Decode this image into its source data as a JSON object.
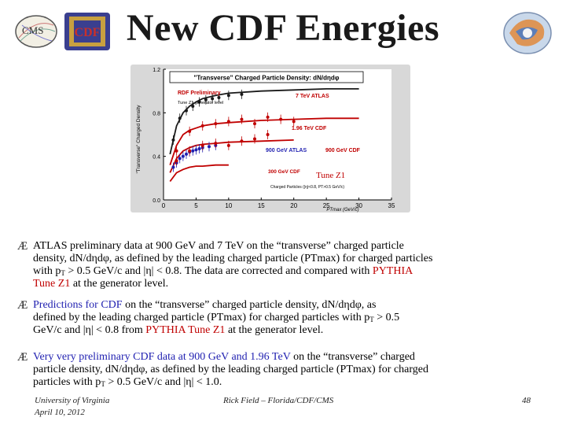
{
  "title": "New CDF Energies",
  "logos": {
    "left": "CMS",
    "center": "CDF"
  },
  "chart_data": {
    "type": "line",
    "title": "\"Transverse\" Charged Particle Density: dN/dηdφ",
    "xlabel": "PTmax  (GeV/c)",
    "ylabel": "\"Transverse\" Charged Density",
    "xlim": [
      0,
      35
    ],
    "ylim": [
      0,
      1.2
    ],
    "xticks": [
      "0",
      "5",
      "10",
      "15",
      "20",
      "25",
      "30",
      "35"
    ],
    "yticks": [
      "0.0",
      "0.4",
      "0.8",
      "1.2"
    ],
    "annotations": {
      "preliminary": "RDF Preliminary",
      "tune": "Tune Z1 generator level",
      "atlas7": "7 TeV ATLAS",
      "cdf196": "1.96 TeV CDF",
      "atlas900": "900 GeV ATLAS",
      "cdf900": "900 GeV CDF",
      "cdf300": "300 GeV CDF",
      "tunez1": "Tune Z1",
      "cuts": "Charged Particles (|η|<0.8, PT>0.5 GeV/c)"
    },
    "series": [
      {
        "name": "7 TeV ATLAS",
        "color": "#1a1a1a",
        "x": [
          1,
          2,
          3,
          4,
          5,
          6,
          8,
          10,
          15,
          20,
          25,
          30
        ],
        "y": [
          0.42,
          0.68,
          0.8,
          0.86,
          0.9,
          0.93,
          0.96,
          0.98,
          1.0,
          1.01,
          1.02,
          1.02
        ]
      },
      {
        "name": "1.96 TeV CDF",
        "color": "#c00000",
        "x": [
          1,
          2,
          3,
          4,
          5,
          6,
          8,
          10,
          15,
          20,
          25,
          30
        ],
        "y": [
          0.32,
          0.5,
          0.6,
          0.64,
          0.66,
          0.68,
          0.7,
          0.71,
          0.73,
          0.74,
          0.75,
          0.75
        ]
      },
      {
        "name": "900 GeV CDF",
        "color": "#c00000",
        "x": [
          1,
          2,
          3,
          4,
          5,
          6,
          8,
          10,
          15,
          20
        ],
        "y": [
          0.25,
          0.38,
          0.45,
          0.48,
          0.5,
          0.51,
          0.52,
          0.53,
          0.54,
          0.55
        ]
      },
      {
        "name": "300 GeV CDF",
        "color": "#c00000",
        "x": [
          1,
          2,
          3,
          4,
          5,
          6,
          8,
          10
        ],
        "y": [
          0.17,
          0.25,
          0.28,
          0.3,
          0.31,
          0.31,
          0.32,
          0.32
        ]
      },
      {
        "name": "7 TeV ATLAS data",
        "color": "#1a1a1a",
        "points": true,
        "x": [
          1.5,
          2.5,
          3.5,
          4.5,
          5.5,
          6.5,
          7.5,
          8.5,
          10,
          12
        ],
        "y": [
          0.55,
          0.75,
          0.82,
          0.86,
          0.9,
          0.92,
          0.93,
          0.94,
          0.96,
          0.97
        ]
      },
      {
        "name": "1.96 TeV CDF data",
        "color": "#c00000",
        "points": true,
        "x": [
          2,
          4,
          6,
          8,
          10,
          12,
          14,
          16,
          18,
          20
        ],
        "y": [
          0.45,
          0.63,
          0.68,
          0.7,
          0.72,
          0.74,
          0.7,
          0.76,
          0.74,
          0.72
        ]
      },
      {
        "name": "900 GeV ATLAS data",
        "color": "#1f1fb0",
        "points": true,
        "x": [
          1.5,
          2,
          2.5,
          3,
          3.5,
          4,
          4.5,
          5,
          5.5,
          6,
          7,
          8
        ],
        "y": [
          0.3,
          0.34,
          0.38,
          0.4,
          0.42,
          0.44,
          0.45,
          0.46,
          0.47,
          0.48,
          0.49,
          0.5
        ]
      },
      {
        "name": "900 GeV CDF data",
        "color": "#c00000",
        "points": true,
        "x": [
          2,
          4,
          6,
          8,
          10,
          12,
          14,
          16
        ],
        "y": [
          0.36,
          0.45,
          0.5,
          0.52,
          0.5,
          0.54,
          0.56,
          0.6
        ]
      }
    ]
  },
  "bullets": [
    {
      "line1": "ATLAS preliminary data at  900 GeV and 7 TeV on the “transverse” charged particle",
      "line2": "density, dN/dηdφ, as defined by the leading charged particle (PTmax) for charged particles",
      "line3a": "with p",
      "line3b": " > 0.5 GeV/c and |η| < 0.8.  The data are corrected and compared with ",
      "line3c": "PYTHIA",
      "line4a": "Tune Z1",
      "line4b": " at the generator level."
    },
    {
      "line1a": "Predictions for CDF",
      "line1b": "  on the “transverse” charged particle density, dN/dηdφ, as",
      "line2a": "defined by the leading charged particle (PTmax) for charged particles with p",
      "line2b": " > 0.5",
      "line3a": "GeV/c and |η| < 0.8 from ",
      "line3b": "PYTHIA Tune Z1",
      "line3c": " at the generator level."
    },
    {
      "line1a": "Very very preliminary CDF data at 900 GeV and 1.96 TeV",
      "line1b": " on the “transverse” charged",
      "line2": "particle density, dN/dηdφ, as defined by the leading charged particle (PTmax) for charged",
      "line3a": "particles with p",
      "line3b": " > 0.5 GeV/c and |η| < 1.0."
    }
  ],
  "sub_T": "T",
  "bullet_symbol": "Æ",
  "footer": {
    "institution": "University of Virginia",
    "date": "April 10, 2012",
    "author": "Rick Field – Florida/CDF/CMS",
    "page": "48"
  }
}
